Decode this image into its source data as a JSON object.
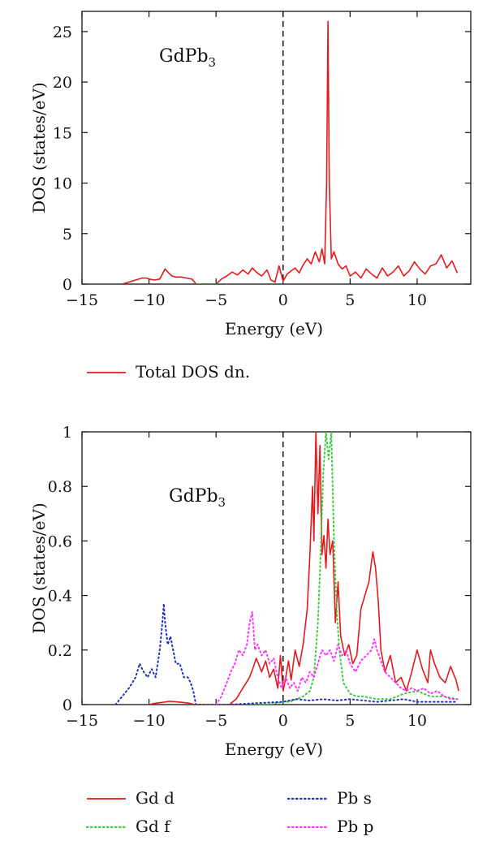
{
  "chart_data": [
    {
      "type": "line",
      "annotation": "GdPb",
      "annotation_sub": "3",
      "xlabel": "Energy (eV)",
      "ylabel": "DOS (states/eV)",
      "xlim": [
        -15,
        14
      ],
      "ylim": [
        0,
        27
      ],
      "xticks": [
        -15,
        -10,
        -5,
        0,
        5,
        10
      ],
      "yticks": [
        0,
        5,
        10,
        15,
        20,
        25
      ],
      "fermi_level": 0,
      "legend_placement": "below",
      "series": [
        {
          "name": "Total DOS dn.",
          "color": "#e41a1c",
          "style": "solid",
          "x": [
            -12.0,
            -11.5,
            -11.0,
            -10.5,
            -10.2,
            -10.0,
            -9.6,
            -9.2,
            -9.0,
            -8.8,
            -8.6,
            -8.3,
            -8.0,
            -7.6,
            -7.2,
            -6.8,
            -6.6,
            -6.5,
            -5.0,
            -4.6,
            -4.2,
            -3.8,
            -3.4,
            -3.0,
            -2.6,
            -2.3,
            -2.0,
            -1.6,
            -1.2,
            -0.9,
            -0.6,
            -0.3,
            0.0,
            0.3,
            0.6,
            0.9,
            1.2,
            1.5,
            1.8,
            2.1,
            2.4,
            2.7,
            2.9,
            3.1,
            3.25,
            3.35,
            3.45,
            3.6,
            3.8,
            4.1,
            4.4,
            4.7,
            5.0,
            5.4,
            5.8,
            6.2,
            6.6,
            7.0,
            7.4,
            7.8,
            8.2,
            8.6,
            9.0,
            9.4,
            9.8,
            10.2,
            10.6,
            11.0,
            11.4,
            11.8,
            12.2,
            12.6,
            13.0
          ],
          "y": [
            0.0,
            0.2,
            0.4,
            0.6,
            0.6,
            0.5,
            0.4,
            0.5,
            1.0,
            1.5,
            1.2,
            0.8,
            0.7,
            0.7,
            0.6,
            0.5,
            0.2,
            0.0,
            0.0,
            0.5,
            0.8,
            1.2,
            0.9,
            1.4,
            1.0,
            1.6,
            1.2,
            0.8,
            1.4,
            0.4,
            0.2,
            1.8,
            0.3,
            1.0,
            1.3,
            1.6,
            1.1,
            1.9,
            2.5,
            2.0,
            3.2,
            2.2,
            3.5,
            2.0,
            10.0,
            26.0,
            10.0,
            2.5,
            3.2,
            2.0,
            1.5,
            1.8,
            0.8,
            1.2,
            0.6,
            1.5,
            1.0,
            0.6,
            1.6,
            0.8,
            1.2,
            1.8,
            0.8,
            1.3,
            2.2,
            1.5,
            1.0,
            1.8,
            2.0,
            2.9,
            1.6,
            2.3,
            1.1
          ]
        }
      ]
    },
    {
      "type": "line",
      "annotation": "GdPb",
      "annotation_sub": "3",
      "xlabel": "Energy (eV)",
      "ylabel": "DOS (states/eV)",
      "xlim": [
        -15,
        14
      ],
      "ylim": [
        0,
        1
      ],
      "xticks": [
        -15,
        -10,
        -5,
        0,
        5,
        10
      ],
      "yticks": [
        0,
        0.2,
        0.4,
        0.6,
        0.8,
        1
      ],
      "ytick_labels": [
        "0",
        "0.2",
        "0.4",
        "0.6",
        "0.8",
        "1"
      ],
      "fermi_level": 0,
      "legend_placement": "below",
      "series": [
        {
          "name": "Gd d",
          "color": "#e41a1c",
          "style": "solid",
          "x": [
            -10.0,
            -9.5,
            -9.0,
            -8.5,
            -8.0,
            -7.5,
            -7.0,
            -6.6,
            -4.0,
            -3.5,
            -3.0,
            -2.5,
            -2.2,
            -2.0,
            -1.6,
            -1.3,
            -1.0,
            -0.7,
            -0.4,
            -0.2,
            0.0,
            0.2,
            0.4,
            0.6,
            0.9,
            1.2,
            1.5,
            1.8,
            2.0,
            2.2,
            2.3,
            2.45,
            2.6,
            2.75,
            2.9,
            3.05,
            3.2,
            3.35,
            3.5,
            3.7,
            3.9,
            4.1,
            4.3,
            4.6,
            4.9,
            5.2,
            5.5,
            5.8,
            6.1,
            6.4,
            6.7,
            6.9,
            7.1,
            7.3,
            7.6,
            8.0,
            8.4,
            8.8,
            9.2,
            9.6,
            10.0,
            10.4,
            10.8,
            11.0,
            11.3,
            11.7,
            12.1,
            12.5,
            12.9,
            13.1
          ],
          "y": [
            0.0,
            0.005,
            0.008,
            0.012,
            0.01,
            0.008,
            0.005,
            0.0,
            0.0,
            0.02,
            0.06,
            0.1,
            0.14,
            0.17,
            0.12,
            0.16,
            0.1,
            0.13,
            0.06,
            0.18,
            0.05,
            0.1,
            0.16,
            0.09,
            0.2,
            0.14,
            0.22,
            0.35,
            0.55,
            0.8,
            0.6,
            1.0,
            0.7,
            0.95,
            0.55,
            0.62,
            0.5,
            0.68,
            0.55,
            0.6,
            0.3,
            0.45,
            0.25,
            0.18,
            0.22,
            0.15,
            0.18,
            0.35,
            0.4,
            0.45,
            0.56,
            0.5,
            0.38,
            0.2,
            0.12,
            0.18,
            0.08,
            0.1,
            0.05,
            0.12,
            0.2,
            0.13,
            0.08,
            0.2,
            0.15,
            0.1,
            0.08,
            0.14,
            0.09,
            0.05
          ]
        },
        {
          "name": "Gd f",
          "color": "#3ccc3c",
          "style": "dotted",
          "x": [
            -3.0,
            -1.0,
            0.0,
            0.5,
            1.0,
            1.5,
            2.0,
            2.3,
            2.6,
            2.8,
            3.0,
            3.2,
            3.4,
            3.6,
            3.8,
            4.0,
            4.2,
            4.5,
            5.0,
            5.5,
            6.0,
            7.0,
            8.0,
            9.0,
            10.0,
            11.0,
            12.0,
            13.0
          ],
          "y": [
            0.0,
            0.0,
            0.01,
            0.01,
            0.02,
            0.03,
            0.05,
            0.1,
            0.3,
            0.55,
            0.85,
            1.0,
            0.9,
            1.0,
            0.6,
            0.35,
            0.2,
            0.08,
            0.04,
            0.03,
            0.03,
            0.02,
            0.02,
            0.04,
            0.05,
            0.03,
            0.03,
            0.02
          ]
        },
        {
          "name": "Pb s",
          "color": "#2233bb",
          "style": "dotted",
          "x": [
            -12.5,
            -12.0,
            -11.5,
            -11.0,
            -10.7,
            -10.4,
            -10.1,
            -9.8,
            -9.5,
            -9.2,
            -9.0,
            -8.9,
            -8.8,
            -8.6,
            -8.4,
            -8.2,
            -8.0,
            -7.7,
            -7.4,
            -7.1,
            -6.9,
            -6.7,
            -6.5,
            -4.0,
            -2.0,
            0.0,
            1.0,
            2.0,
            3.0,
            4.0,
            5.0,
            6.0,
            7.0,
            8.0,
            9.0,
            10.0,
            11.0,
            12.0,
            13.0
          ],
          "y": [
            0.0,
            0.03,
            0.06,
            0.1,
            0.15,
            0.12,
            0.1,
            0.13,
            0.1,
            0.2,
            0.3,
            0.37,
            0.3,
            0.22,
            0.25,
            0.2,
            0.15,
            0.15,
            0.1,
            0.1,
            0.08,
            0.05,
            0.0,
            0.0,
            0.005,
            0.01,
            0.02,
            0.015,
            0.02,
            0.015,
            0.02,
            0.015,
            0.01,
            0.015,
            0.02,
            0.01,
            0.01,
            0.01,
            0.01
          ]
        },
        {
          "name": "Pb p",
          "color": "#ff33ff",
          "style": "dotted",
          "x": [
            -5.0,
            -4.6,
            -4.2,
            -3.9,
            -3.6,
            -3.3,
            -3.0,
            -2.7,
            -2.5,
            -2.3,
            -2.1,
            -1.9,
            -1.6,
            -1.3,
            -1.0,
            -0.7,
            -0.4,
            -0.1,
            0.2,
            0.5,
            0.8,
            1.1,
            1.4,
            1.7,
            2.0,
            2.3,
            2.6,
            2.9,
            3.2,
            3.5,
            3.8,
            4.1,
            4.4,
            4.7,
            5.0,
            5.4,
            5.8,
            6.2,
            6.6,
            6.8,
            7.0,
            7.3,
            7.6,
            8.0,
            8.4,
            8.8,
            9.2,
            9.6,
            10.0,
            10.5,
            11.0,
            11.5,
            12.0,
            12.5,
            13.0
          ],
          "y": [
            0.0,
            0.03,
            0.08,
            0.12,
            0.15,
            0.2,
            0.18,
            0.22,
            0.3,
            0.34,
            0.2,
            0.22,
            0.18,
            0.2,
            0.15,
            0.17,
            0.1,
            0.06,
            0.1,
            0.06,
            0.08,
            0.05,
            0.1,
            0.08,
            0.12,
            0.1,
            0.15,
            0.2,
            0.18,
            0.2,
            0.16,
            0.22,
            0.18,
            0.2,
            0.15,
            0.12,
            0.16,
            0.18,
            0.2,
            0.24,
            0.2,
            0.16,
            0.12,
            0.1,
            0.08,
            0.06,
            0.05,
            0.06,
            0.05,
            0.06,
            0.04,
            0.05,
            0.03,
            0.02,
            0.02
          ]
        }
      ]
    }
  ]
}
